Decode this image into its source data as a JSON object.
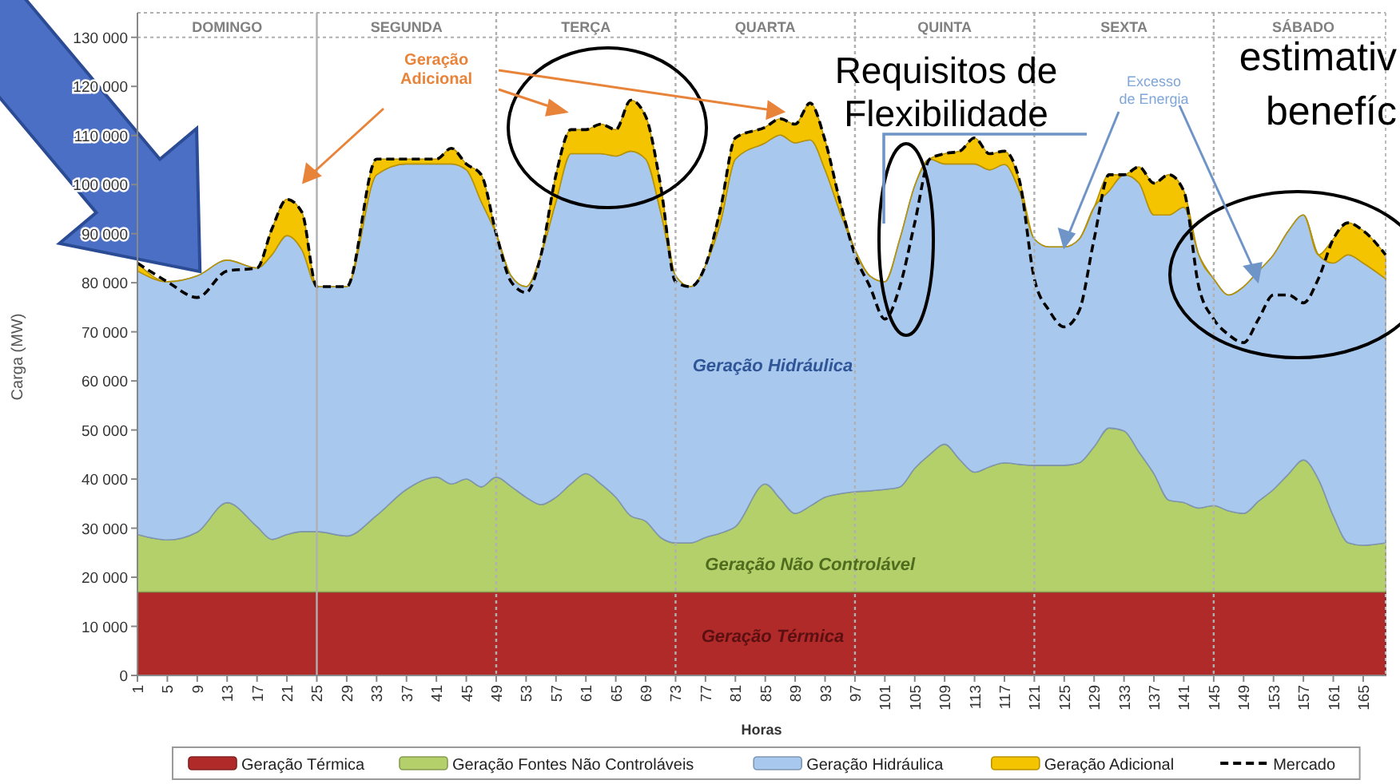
{
  "chart_data": {
    "type": "area",
    "stacked": true,
    "xlabel": "Horas",
    "ylabel": "Carga (MW)",
    "legend": "bottom",
    "x": [
      1,
      5,
      9,
      13,
      17,
      19,
      21,
      23,
      25,
      29,
      33,
      37,
      41,
      43,
      45,
      47,
      49,
      51,
      53,
      55,
      57,
      59,
      61,
      63,
      65,
      67,
      69,
      71,
      73,
      75,
      77,
      79,
      81,
      85,
      87,
      89,
      91,
      93,
      95,
      97,
      99,
      101,
      103,
      105,
      107,
      109,
      111,
      113,
      115,
      117,
      119,
      121,
      123,
      125,
      127,
      129,
      131,
      133,
      135,
      137,
      139,
      141,
      143,
      145,
      147,
      149,
      151,
      153,
      155,
      157,
      159,
      161,
      163,
      165,
      168
    ],
    "xlim": [
      1,
      168
    ],
    "xticks": [
      1,
      5,
      9,
      13,
      17,
      21,
      25,
      29,
      33,
      37,
      41,
      45,
      49,
      53,
      57,
      61,
      65,
      69,
      73,
      77,
      81,
      85,
      89,
      93,
      97,
      101,
      105,
      109,
      113,
      117,
      121,
      125,
      129,
      133,
      137,
      141,
      145,
      149,
      153,
      157,
      161,
      165
    ],
    "ylim": [
      0,
      135000
    ],
    "yticks": [
      0,
      {
        "value": 10000,
        "label": "10 000"
      },
      {
        "value": 20000,
        "label": "20 000"
      },
      {
        "value": 30000,
        "label": "30 000"
      },
      {
        "value": 40000,
        "label": "40 000"
      },
      {
        "value": 50000,
        "label": "50 000"
      },
      {
        "value": 60000,
        "label": "60 000"
      },
      {
        "value": 70000,
        "label": "70 000"
      },
      {
        "value": 80000,
        "label": "80 000"
      },
      {
        "value": 90000,
        "label": "90 000"
      },
      {
        "value": 100000,
        "label": "100 000"
      },
      {
        "value": 110000,
        "label": "110 000"
      },
      {
        "value": 120000,
        "label": "120 000"
      },
      {
        "value": 130000,
        "label": "130 000"
      }
    ],
    "series": [
      {
        "name": "Geração Térmica",
        "color": "#b02a2a",
        "values": [
          17000,
          17000,
          17000,
          17000,
          17000,
          17000,
          17000,
          17000,
          17000,
          17000,
          17000,
          17000,
          17000,
          17000,
          17000,
          17000,
          17000,
          17000,
          17000,
          17000,
          17000,
          17000,
          17000,
          17000,
          17000,
          17000,
          17000,
          17000,
          17000,
          17000,
          17000,
          17000,
          17000,
          17000,
          17000,
          17000,
          17000,
          17000,
          17000,
          17000,
          17000,
          17000,
          17000,
          17000,
          17000,
          17000,
          17000,
          17000,
          17000,
          17000,
          17000,
          17000,
          17000,
          17000,
          17000,
          17000,
          17000,
          17000,
          17000,
          17000,
          17000,
          17000,
          17000,
          17000,
          17000,
          17000,
          17000,
          17000,
          17000,
          17000,
          17000,
          17000,
          17000,
          17000,
          17000
        ]
      },
      {
        "name": "Geração Fontes Não Controláveis",
        "color": "#b3d06a",
        "values": [
          11700,
          10600,
          12200,
          18200,
          13300,
          10700,
          11700,
          12300,
          12300,
          11400,
          15600,
          20900,
          23400,
          22000,
          23000,
          21400,
          23400,
          21500,
          19300,
          17800,
          19300,
          22000,
          24100,
          22000,
          19300,
          15500,
          14400,
          11100,
          10000,
          10000,
          11100,
          12000,
          13300,
          22000,
          19000,
          16000,
          17500,
          19300,
          20000,
          20400,
          20600,
          20900,
          21400,
          25200,
          28000,
          30100,
          27000,
          24400,
          25500,
          26300,
          26000,
          25800,
          25800,
          25800,
          26300,
          29600,
          33400,
          32800,
          28500,
          24100,
          18700,
          18200,
          17100,
          17600,
          16500,
          16000,
          18500,
          20900,
          24000,
          26900,
          23000,
          15500,
          10000,
          9500,
          10000
        ]
      },
      {
        "name": "Geração Hidráulica",
        "color": "#a9c8ee",
        "values": [
          53700,
          52600,
          52200,
          49400,
          52700,
          58000,
          60900,
          57400,
          49900,
          50800,
          69400,
          66300,
          63800,
          65200,
          63000,
          58100,
          49600,
          42900,
          42900,
          50900,
          60200,
          67300,
          65200,
          67300,
          69500,
          74300,
          73800,
          66300,
          54400,
          52200,
          55400,
          63200,
          74900,
          69500,
          74100,
          75500,
          74600,
          66700,
          57400,
          49300,
          43800,
          42300,
          50500,
          57600,
          60200,
          57100,
          60200,
          62800,
          60500,
          60800,
          55700,
          46100,
          44500,
          44500,
          45600,
          48800,
          48300,
          52200,
          54800,
          52700,
          58100,
          60200,
          51600,
          46200,
          44000,
          46200,
          46900,
          47800,
          49600,
          49900,
          45700,
          51500,
          58700,
          57500,
          53800
        ]
      },
      {
        "name": "Geração Adicional",
        "color": "#f5c400",
        "values": [
          1600,
          0,
          0,
          0,
          0,
          5300,
          7400,
          7700,
          0,
          0,
          3200,
          1000,
          1000,
          3200,
          1200,
          5500,
          0,
          0,
          0,
          0,
          5500,
          4900,
          4900,
          6000,
          5400,
          10400,
          8700,
          5400,
          0,
          0,
          0,
          2800,
          4300,
          3200,
          3300,
          3800,
          7500,
          6000,
          2100,
          0,
          0,
          0,
          0,
          0,
          0,
          2100,
          2600,
          5300,
          3300,
          2700,
          2200,
          0,
          0,
          0,
          0,
          0,
          3300,
          0,
          3300,
          6500,
          8200,
          3300,
          0,
          0,
          0,
          0,
          0,
          0,
          0,
          0,
          0,
          4900,
          6500,
          6600,
          4900
        ]
      },
      {
        "name": "Mercado",
        "type": "line",
        "color": "#000000",
        "line_style": "dashed",
        "values": [
          84000,
          80200,
          77000,
          82400,
          83000,
          91000,
          97000,
          94400,
          79200,
          79200,
          105200,
          105200,
          105200,
          107400,
          104200,
          102000,
          90000,
          80200,
          78000,
          85700,
          102000,
          111200,
          111200,
          112300,
          111200,
          117200,
          113900,
          99800,
          80200,
          79200,
          83500,
          95000,
          109500,
          111700,
          113400,
          112300,
          116600,
          109000,
          96500,
          85700,
          79200,
          72600,
          79200,
          92200,
          105200,
          106300,
          106800,
          109500,
          106300,
          106800,
          100900,
          80800,
          74300,
          71000,
          74300,
          88900,
          102000,
          102000,
          103600,
          100300,
          102000,
          98700,
          79200,
          72600,
          69400,
          67800,
          72600,
          77500,
          77500,
          75900,
          80800,
          88900,
          92200,
          90600,
          85700
        ]
      }
    ],
    "ref_lines": [
      {
        "axis": "y",
        "value": 130000,
        "color": "#b0b0b0",
        "line_style": "dotted"
      },
      {
        "axis": "x",
        "value": 25,
        "color": "#b0b0b0",
        "line_style": "solid"
      },
      {
        "axis": "x",
        "value": 49,
        "color": "#b0b0b0",
        "line_style": "dotted"
      },
      {
        "axis": "x",
        "value": 73,
        "color": "#b0b0b0",
        "line_style": "dotted"
      },
      {
        "axis": "x",
        "value": 97,
        "color": "#b0b0b0",
        "line_style": "dotted"
      },
      {
        "axis": "x",
        "value": 121,
        "color": "#b0b0b0",
        "line_style": "dotted"
      },
      {
        "axis": "x",
        "value": 145,
        "color": "#b0b0b0",
        "line_style": "dotted"
      }
    ],
    "annotations": [
      "DOMINGO",
      "SEGUNDA",
      "TERÇA",
      "QUARTA",
      "QUINTA",
      "SEXTA",
      "SÁBADO",
      "Geração\nAdicional",
      {
        "text": "Excesso\nde Energia",
        "x": 125,
        "y": 87300
      },
      "Geração Hidráulica",
      "Geração Não Controlável",
      "Geração Térmica",
      "Requisitos de\nFlexibilidade",
      "estimativ\nbenefíc"
    ]
  }
}
